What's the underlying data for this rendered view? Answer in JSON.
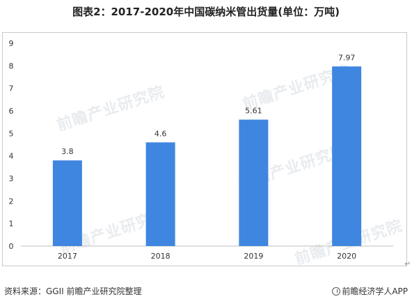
{
  "title": "图表2：2017-2020年中国碳纳米管出货量(单位：万吨)",
  "source": "资料来源：GGII 前瞻产业研究院整理",
  "brand": "前瞻经济学人APP",
  "watermark": "前瞻产业研究院",
  "colors": {
    "bar": "#3f86e0",
    "axis": "#bfbfbf",
    "frame": "#c9c9c9"
  },
  "chart_data": {
    "type": "bar",
    "categories": [
      "2017",
      "2018",
      "2019",
      "2020"
    ],
    "values": [
      3.8,
      4.6,
      5.61,
      7.97
    ],
    "value_labels": [
      "3.8",
      "4.6",
      "5.61",
      "7.97"
    ],
    "yticks": [
      "0",
      "1",
      "2",
      "3",
      "4",
      "5",
      "6",
      "7",
      "8",
      "9"
    ],
    "ylim": [
      0,
      9
    ],
    "grid": false,
    "legend": "none"
  }
}
